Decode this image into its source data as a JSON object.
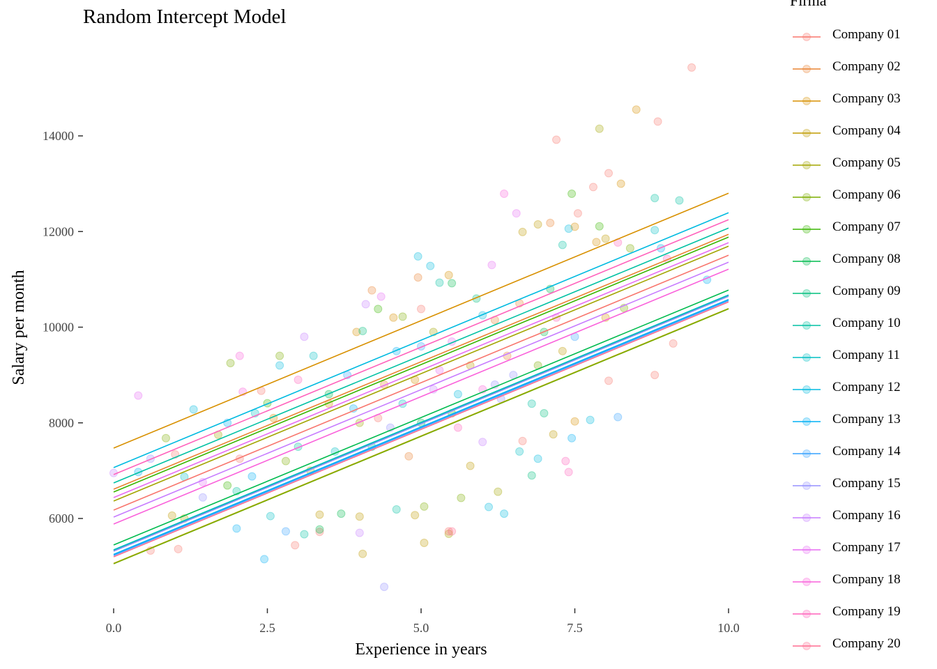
{
  "chart_data": {
    "type": "scatter",
    "title": "Random Intercept Model",
    "xlabel": "Experience in years",
    "ylabel": "Salary per month",
    "xlim": [
      0,
      10
    ],
    "ylim": [
      4400,
      15700
    ],
    "xticks": [
      0,
      2.5,
      5,
      7.5,
      10
    ],
    "xtick_labels": [
      "0.0",
      "2.5",
      "5.0",
      "7.5",
      "10.0"
    ],
    "yticks": [
      6000,
      8000,
      10000,
      12000,
      14000
    ],
    "ytick_labels": [
      "6000",
      "8000",
      "10000",
      "12000",
      "14000"
    ],
    "grid": false,
    "legend": {
      "title": "Firma",
      "placement": "right"
    },
    "slope": 533,
    "series": [
      {
        "name": "Company 01",
        "color": "#F8766D",
        "intercept": 6175
      },
      {
        "name": "Company 02",
        "color": "#EA8331",
        "intercept": 6612
      },
      {
        "name": "Company 03",
        "color": "#D89000",
        "intercept": 7472
      },
      {
        "name": "Company 04",
        "color": "#C09B00",
        "intercept": 5060
      },
      {
        "name": "Company 05",
        "color": "#A3A500",
        "intercept": 6364
      },
      {
        "name": "Company 06",
        "color": "#7CAE00",
        "intercept": 5052
      },
      {
        "name": "Company 07",
        "color": "#39B600",
        "intercept": 6554
      },
      {
        "name": "Company 08",
        "color": "#00BB4E",
        "intercept": 5446
      },
      {
        "name": "Company 09",
        "color": "#00BF7D",
        "intercept": 5330
      },
      {
        "name": "Company 10",
        "color": "#00C1A3",
        "intercept": 6743
      },
      {
        "name": "Company 11",
        "color": "#00BFC4",
        "intercept": 5344
      },
      {
        "name": "Company 12",
        "color": "#00BAE0",
        "intercept": 7064
      },
      {
        "name": "Company 13",
        "color": "#00B0F6",
        "intercept": 5250
      },
      {
        "name": "Company 14",
        "color": "#35A2FF",
        "intercept": 5227
      },
      {
        "name": "Company 15",
        "color": "#9590FF",
        "intercept": 5315
      },
      {
        "name": "Company 16",
        "color": "#C77CFF",
        "intercept": 6029
      },
      {
        "name": "Company 17",
        "color": "#E76BF3",
        "intercept": 6437
      },
      {
        "name": "Company 18",
        "color": "#FA62DB",
        "intercept": 5883
      },
      {
        "name": "Company 19",
        "color": "#FF62BC",
        "intercept": 6918
      },
      {
        "name": "Company 20",
        "color": "#FF6C91",
        "intercept": 5198
      }
    ],
    "points": [
      [
        9.4,
        15430,
        1
      ],
      [
        8.5,
        14550,
        3
      ],
      [
        8.85,
        14300,
        1
      ],
      [
        7.9,
        14150,
        5
      ],
      [
        7.2,
        13920,
        1
      ],
      [
        8.05,
        13220,
        1
      ],
      [
        8.25,
        13000,
        3
      ],
      [
        7.8,
        12930,
        1
      ],
      [
        7.45,
        12790,
        7
      ],
      [
        8.8,
        12700,
        10
      ],
      [
        9.2,
        12650,
        10
      ],
      [
        6.35,
        12790,
        18
      ],
      [
        6.55,
        12380,
        17
      ],
      [
        7.55,
        12380,
        1
      ],
      [
        7.1,
        12180,
        2
      ],
      [
        6.9,
        12150,
        4
      ],
      [
        7.9,
        12110,
        7
      ],
      [
        7.4,
        12060,
        12
      ],
      [
        6.65,
        11990,
        4
      ],
      [
        8.8,
        12030,
        11
      ],
      [
        7.5,
        12100,
        3
      ],
      [
        8.9,
        11650,
        13
      ],
      [
        8.4,
        11650,
        6
      ],
      [
        7.3,
        11720,
        10
      ],
      [
        6.15,
        11300,
        17
      ],
      [
        5.15,
        11280,
        12
      ],
      [
        4.95,
        11480,
        12
      ],
      [
        5.45,
        11090,
        3
      ],
      [
        5.3,
        10930,
        10
      ],
      [
        4.95,
        11040,
        2
      ],
      [
        5.5,
        10920,
        8
      ],
      [
        4.2,
        10770,
        2
      ],
      [
        4.35,
        10640,
        17
      ],
      [
        4.1,
        10480,
        16
      ],
      [
        4.3,
        10380,
        7
      ],
      [
        4.55,
        10200,
        3
      ],
      [
        4.7,
        10220,
        6
      ],
      [
        3.95,
        9900,
        3
      ],
      [
        4.05,
        9920,
        9
      ],
      [
        3.1,
        9800,
        16
      ],
      [
        2.7,
        9400,
        6
      ],
      [
        2.05,
        9400,
        18
      ],
      [
        1.9,
        9250,
        6
      ],
      [
        2.7,
        9200,
        12
      ],
      [
        3.25,
        9400,
        11
      ],
      [
        0.4,
        8570,
        17
      ],
      [
        0.85,
        7680,
        6
      ],
      [
        1.3,
        8280,
        12
      ],
      [
        1.85,
        8000,
        13
      ],
      [
        2.1,
        8650,
        18
      ],
      [
        2.4,
        8670,
        1
      ],
      [
        2.5,
        8410,
        7
      ],
      [
        2.3,
        8200,
        11
      ],
      [
        1.7,
        7750,
        5
      ],
      [
        2.05,
        7250,
        1
      ],
      [
        0.6,
        7250,
        15
      ],
      [
        0.0,
        6950,
        16
      ],
      [
        0.4,
        6970,
        13
      ],
      [
        1.15,
        6870,
        11
      ],
      [
        1.45,
        6760,
        17
      ],
      [
        1.0,
        7340,
        1
      ],
      [
        1.45,
        6440,
        15
      ],
      [
        1.85,
        6690,
        7
      ],
      [
        2.25,
        6880,
        13
      ],
      [
        2.0,
        6570,
        10
      ],
      [
        0.95,
        6060,
        4
      ],
      [
        1.15,
        6000,
        5
      ],
      [
        0.6,
        5330,
        1
      ],
      [
        1.05,
        5360,
        1
      ],
      [
        2.0,
        5790,
        13
      ],
      [
        2.45,
        5150,
        13
      ],
      [
        2.55,
        6050,
        11
      ],
      [
        2.8,
        5730,
        14
      ],
      [
        3.1,
        5670,
        10
      ],
      [
        2.95,
        5440,
        1
      ],
      [
        3.35,
        5720,
        1
      ],
      [
        3.35,
        5770,
        8
      ],
      [
        4.0,
        5700,
        16
      ],
      [
        4.05,
        5260,
        4
      ],
      [
        4.4,
        4570,
        15
      ],
      [
        5.05,
        5490,
        4
      ],
      [
        5.45,
        5680,
        5
      ],
      [
        5.45,
        5730,
        1
      ],
      [
        3.35,
        6080,
        4
      ],
      [
        3.7,
        6100,
        8
      ],
      [
        4.0,
        6040,
        4
      ],
      [
        4.9,
        6070,
        4
      ],
      [
        5.05,
        6250,
        6
      ],
      [
        4.6,
        6190,
        10
      ],
      [
        5.65,
        6430,
        6
      ],
      [
        6.25,
        6560,
        5
      ],
      [
        6.35,
        6100,
        12
      ],
      [
        6.1,
        6240,
        12
      ],
      [
        6.8,
        6900,
        9
      ],
      [
        6.6,
        7400,
        11
      ],
      [
        6.65,
        7620,
        1
      ],
      [
        6.9,
        7250,
        12
      ],
      [
        7.15,
        7760,
        4
      ],
      [
        7.5,
        8030,
        3
      ],
      [
        7.45,
        7680,
        13
      ],
      [
        7.75,
        8060,
        12
      ],
      [
        8.05,
        8880,
        1
      ],
      [
        8.2,
        8120,
        14
      ],
      [
        8.8,
        9000,
        1
      ],
      [
        9.1,
        9660,
        1
      ],
      [
        9.65,
        10990,
        13
      ],
      [
        9.0,
        11430,
        19
      ],
      [
        8.2,
        11770,
        19
      ],
      [
        8.0,
        11850,
        4
      ],
      [
        7.85,
        11780,
        3
      ],
      [
        7.4,
        6970,
        19
      ],
      [
        7.35,
        7200,
        19
      ],
      [
        5.5,
        5730,
        20
      ],
      [
        6.0,
        8700,
        18
      ],
      [
        5.5,
        9700,
        17
      ],
      [
        5.0,
        9600,
        14
      ],
      [
        5.0,
        10380,
        1
      ],
      [
        6.0,
        10250,
        12
      ],
      [
        6.2,
        10150,
        2
      ],
      [
        6.5,
        9000,
        15
      ],
      [
        6.3,
        8500,
        15
      ],
      [
        5.5,
        8200,
        7
      ],
      [
        5.0,
        8000,
        8
      ],
      [
        4.5,
        7900,
        15
      ],
      [
        4.0,
        8000,
        5
      ],
      [
        3.5,
        8400,
        3
      ],
      [
        3.0,
        7500,
        10
      ],
      [
        3.2,
        7000,
        5
      ],
      [
        4.2,
        7500,
        9
      ],
      [
        4.8,
        7300,
        2
      ],
      [
        5.2,
        8700,
        16
      ],
      [
        5.8,
        9200,
        4
      ],
      [
        6.4,
        9400,
        2
      ],
      [
        7.0,
        9900,
        8
      ],
      [
        7.2,
        10200,
        19
      ],
      [
        7.5,
        9800,
        14
      ],
      [
        8.0,
        10200,
        3
      ],
      [
        8.3,
        10400,
        6
      ],
      [
        4.4,
        8800,
        2
      ],
      [
        3.8,
        9000,
        14
      ],
      [
        4.6,
        9500,
        13
      ],
      [
        5.3,
        9100,
        17
      ],
      [
        6.8,
        8400,
        10
      ],
      [
        7.0,
        8200,
        9
      ],
      [
        6.0,
        7600,
        16
      ],
      [
        5.8,
        7100,
        4
      ],
      [
        5.6,
        7900,
        19
      ],
      [
        3.6,
        7400,
        11
      ],
      [
        2.6,
        8100,
        3
      ],
      [
        3.0,
        8900,
        19
      ],
      [
        3.5,
        8600,
        8
      ],
      [
        2.8,
        7200,
        6
      ],
      [
        4.7,
        8400,
        11
      ],
      [
        5.2,
        9900,
        5
      ],
      [
        6.6,
        10500,
        2
      ],
      [
        7.1,
        10800,
        8
      ],
      [
        5.9,
        10600,
        9
      ],
      [
        3.9,
        8300,
        13
      ],
      [
        4.3,
        8100,
        1
      ],
      [
        4.9,
        8900,
        3
      ],
      [
        5.6,
        8600,
        12
      ],
      [
        6.2,
        8800,
        15
      ],
      [
        6.9,
        9200,
        6
      ],
      [
        7.3,
        9500,
        4
      ]
    ]
  }
}
